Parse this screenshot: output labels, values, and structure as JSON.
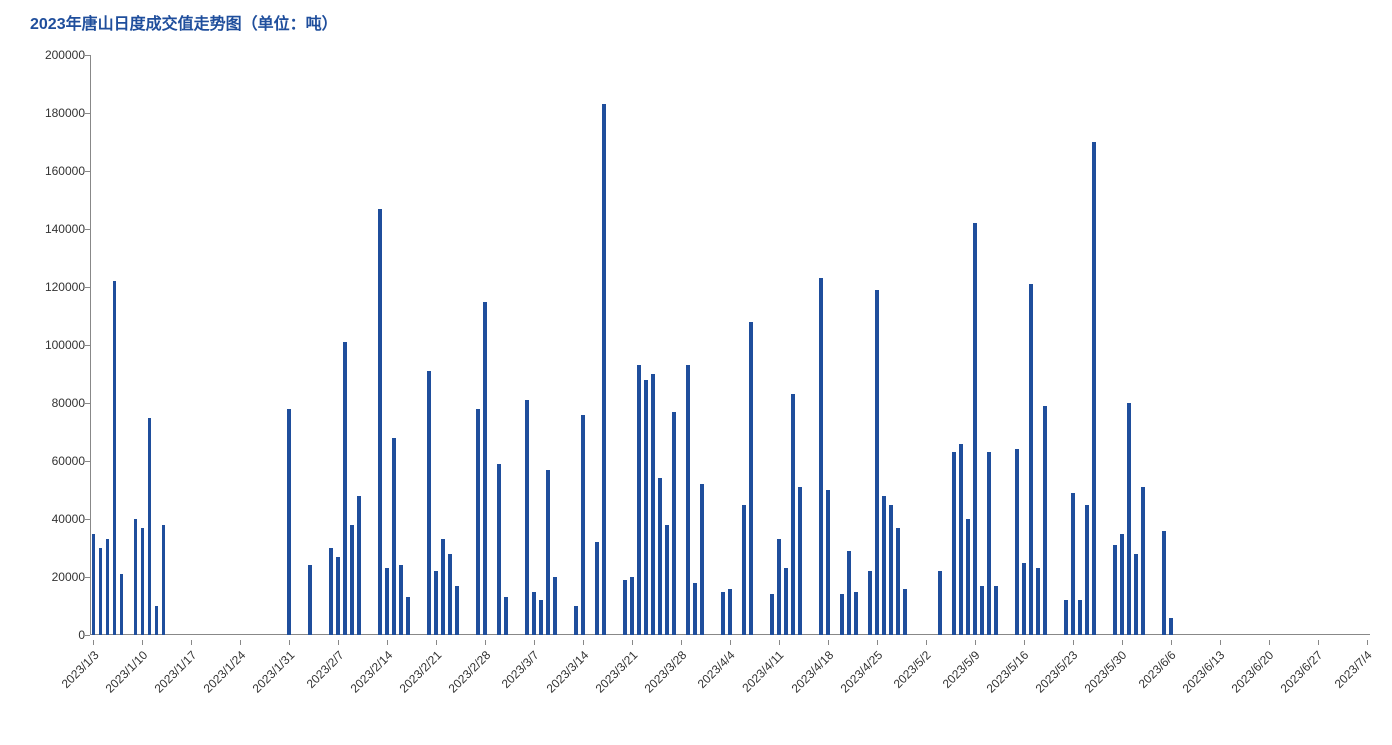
{
  "chart": {
    "type": "bar",
    "title": "2023年唐山日度成交值走势图（单位：吨）",
    "title_color": "#1f4e9c",
    "title_fontsize": 16,
    "bar_color": "#1f4e9c",
    "background_color": "#ffffff",
    "axis_color": "#888888",
    "label_color": "#333333",
    "label_fontsize": 12,
    "ylim": [
      0,
      200000
    ],
    "ytick_step": 20000,
    "y_ticks": [
      0,
      20000,
      40000,
      60000,
      80000,
      100000,
      120000,
      140000,
      160000,
      180000,
      200000
    ],
    "x_tick_labels": [
      "2023/1/3",
      "2023/1/10",
      "2023/1/17",
      "2023/1/24",
      "2023/1/31",
      "2023/2/7",
      "2023/2/14",
      "2023/2/21",
      "2023/2/28",
      "2023/3/7",
      "2023/3/14",
      "2023/3/21",
      "2023/3/28",
      "2023/4/4",
      "2023/4/11",
      "2023/4/18",
      "2023/4/25",
      "2023/5/2",
      "2023/5/9",
      "2023/5/16",
      "2023/5/23",
      "2023/5/30",
      "2023/6/6",
      "2023/6/13",
      "2023/6/20",
      "2023/6/27",
      "2023/7/4"
    ],
    "x_tick_interval": 7,
    "bar_width_ratio": 0.55,
    "data": [
      {
        "date": "2023/1/3",
        "value": 35000
      },
      {
        "date": "2023/1/4",
        "value": 30000
      },
      {
        "date": "2023/1/5",
        "value": 33000
      },
      {
        "date": "2023/1/6",
        "value": 122000
      },
      {
        "date": "2023/1/7",
        "value": 21000
      },
      {
        "date": "2023/1/8",
        "value": 0
      },
      {
        "date": "2023/1/9",
        "value": 40000
      },
      {
        "date": "2023/1/10",
        "value": 37000
      },
      {
        "date": "2023/1/11",
        "value": 75000
      },
      {
        "date": "2023/1/12",
        "value": 10000
      },
      {
        "date": "2023/1/13",
        "value": 38000
      },
      {
        "date": "2023/1/14",
        "value": 0
      },
      {
        "date": "2023/1/15",
        "value": 0
      },
      {
        "date": "2023/1/16",
        "value": 0
      },
      {
        "date": "2023/1/17",
        "value": 0
      },
      {
        "date": "2023/1/18",
        "value": 0
      },
      {
        "date": "2023/1/19",
        "value": 0
      },
      {
        "date": "2023/1/20",
        "value": 0
      },
      {
        "date": "2023/1/21",
        "value": 0
      },
      {
        "date": "2023/1/22",
        "value": 0
      },
      {
        "date": "2023/1/23",
        "value": 0
      },
      {
        "date": "2023/1/24",
        "value": 0
      },
      {
        "date": "2023/1/25",
        "value": 0
      },
      {
        "date": "2023/1/26",
        "value": 0
      },
      {
        "date": "2023/1/27",
        "value": 0
      },
      {
        "date": "2023/1/28",
        "value": 0
      },
      {
        "date": "2023/1/29",
        "value": 0
      },
      {
        "date": "2023/1/30",
        "value": 0
      },
      {
        "date": "2023/1/31",
        "value": 78000
      },
      {
        "date": "2023/2/1",
        "value": 0
      },
      {
        "date": "2023/2/2",
        "value": 0
      },
      {
        "date": "2023/2/3",
        "value": 24000
      },
      {
        "date": "2023/2/4",
        "value": 0
      },
      {
        "date": "2023/2/5",
        "value": 0
      },
      {
        "date": "2023/2/6",
        "value": 30000
      },
      {
        "date": "2023/2/7",
        "value": 27000
      },
      {
        "date": "2023/2/8",
        "value": 101000
      },
      {
        "date": "2023/2/9",
        "value": 38000
      },
      {
        "date": "2023/2/10",
        "value": 48000
      },
      {
        "date": "2023/2/11",
        "value": 0
      },
      {
        "date": "2023/2/12",
        "value": 0
      },
      {
        "date": "2023/2/13",
        "value": 147000
      },
      {
        "date": "2023/2/14",
        "value": 23000
      },
      {
        "date": "2023/2/15",
        "value": 68000
      },
      {
        "date": "2023/2/16",
        "value": 24000
      },
      {
        "date": "2023/2/17",
        "value": 13000
      },
      {
        "date": "2023/2/18",
        "value": 0
      },
      {
        "date": "2023/2/19",
        "value": 0
      },
      {
        "date": "2023/2/20",
        "value": 91000
      },
      {
        "date": "2023/2/21",
        "value": 22000
      },
      {
        "date": "2023/2/22",
        "value": 33000
      },
      {
        "date": "2023/2/23",
        "value": 28000
      },
      {
        "date": "2023/2/24",
        "value": 17000
      },
      {
        "date": "2023/2/25",
        "value": 0
      },
      {
        "date": "2023/2/26",
        "value": 0
      },
      {
        "date": "2023/2/27",
        "value": 78000
      },
      {
        "date": "2023/2/28",
        "value": 115000
      },
      {
        "date": "2023/3/1",
        "value": 0
      },
      {
        "date": "2023/3/2",
        "value": 59000
      },
      {
        "date": "2023/3/3",
        "value": 13000
      },
      {
        "date": "2023/3/4",
        "value": 0
      },
      {
        "date": "2023/3/5",
        "value": 0
      },
      {
        "date": "2023/3/6",
        "value": 81000
      },
      {
        "date": "2023/3/7",
        "value": 15000
      },
      {
        "date": "2023/3/8",
        "value": 12000
      },
      {
        "date": "2023/3/9",
        "value": 57000
      },
      {
        "date": "2023/3/10",
        "value": 20000
      },
      {
        "date": "2023/3/11",
        "value": 0
      },
      {
        "date": "2023/3/12",
        "value": 0
      },
      {
        "date": "2023/3/13",
        "value": 10000
      },
      {
        "date": "2023/3/14",
        "value": 76000
      },
      {
        "date": "2023/3/15",
        "value": 0
      },
      {
        "date": "2023/3/16",
        "value": 32000
      },
      {
        "date": "2023/3/17",
        "value": 183000
      },
      {
        "date": "2023/3/18",
        "value": 0
      },
      {
        "date": "2023/3/19",
        "value": 0
      },
      {
        "date": "2023/3/20",
        "value": 19000
      },
      {
        "date": "2023/3/21",
        "value": 20000
      },
      {
        "date": "2023/3/22",
        "value": 93000
      },
      {
        "date": "2023/3/23",
        "value": 88000
      },
      {
        "date": "2023/3/24",
        "value": 90000
      },
      {
        "date": "2023/3/25",
        "value": 54000
      },
      {
        "date": "2023/3/26",
        "value": 38000
      },
      {
        "date": "2023/3/27",
        "value": 77000
      },
      {
        "date": "2023/3/28",
        "value": 0
      },
      {
        "date": "2023/3/29",
        "value": 93000
      },
      {
        "date": "2023/3/30",
        "value": 18000
      },
      {
        "date": "2023/3/31",
        "value": 52000
      },
      {
        "date": "2023/4/1",
        "value": 0
      },
      {
        "date": "2023/4/2",
        "value": 0
      },
      {
        "date": "2023/4/3",
        "value": 15000
      },
      {
        "date": "2023/4/4",
        "value": 16000
      },
      {
        "date": "2023/4/5",
        "value": 0
      },
      {
        "date": "2023/4/6",
        "value": 45000
      },
      {
        "date": "2023/4/7",
        "value": 108000
      },
      {
        "date": "2023/4/8",
        "value": 0
      },
      {
        "date": "2023/4/9",
        "value": 0
      },
      {
        "date": "2023/4/10",
        "value": 14000
      },
      {
        "date": "2023/4/11",
        "value": 33000
      },
      {
        "date": "2023/4/12",
        "value": 23000
      },
      {
        "date": "2023/4/13",
        "value": 83000
      },
      {
        "date": "2023/4/14",
        "value": 51000
      },
      {
        "date": "2023/4/15",
        "value": 0
      },
      {
        "date": "2023/4/16",
        "value": 0
      },
      {
        "date": "2023/4/17",
        "value": 123000
      },
      {
        "date": "2023/4/18",
        "value": 50000
      },
      {
        "date": "2023/4/19",
        "value": 0
      },
      {
        "date": "2023/4/20",
        "value": 14000
      },
      {
        "date": "2023/4/21",
        "value": 29000
      },
      {
        "date": "2023/4/22",
        "value": 15000
      },
      {
        "date": "2023/4/23",
        "value": 0
      },
      {
        "date": "2023/4/24",
        "value": 22000
      },
      {
        "date": "2023/4/25",
        "value": 119000
      },
      {
        "date": "2023/4/26",
        "value": 48000
      },
      {
        "date": "2023/4/27",
        "value": 45000
      },
      {
        "date": "2023/4/28",
        "value": 37000
      },
      {
        "date": "2023/4/29",
        "value": 16000
      },
      {
        "date": "2023/4/30",
        "value": 0
      },
      {
        "date": "2023/5/1",
        "value": 0
      },
      {
        "date": "2023/5/2",
        "value": 0
      },
      {
        "date": "2023/5/3",
        "value": 0
      },
      {
        "date": "2023/5/4",
        "value": 22000
      },
      {
        "date": "2023/5/5",
        "value": 0
      },
      {
        "date": "2023/5/6",
        "value": 63000
      },
      {
        "date": "2023/5/7",
        "value": 66000
      },
      {
        "date": "2023/5/8",
        "value": 40000
      },
      {
        "date": "2023/5/9",
        "value": 142000
      },
      {
        "date": "2023/5/10",
        "value": 17000
      },
      {
        "date": "2023/5/11",
        "value": 63000
      },
      {
        "date": "2023/5/12",
        "value": 17000
      },
      {
        "date": "2023/5/13",
        "value": 0
      },
      {
        "date": "2023/5/14",
        "value": 0
      },
      {
        "date": "2023/5/15",
        "value": 64000
      },
      {
        "date": "2023/5/16",
        "value": 25000
      },
      {
        "date": "2023/5/17",
        "value": 121000
      },
      {
        "date": "2023/5/18",
        "value": 23000
      },
      {
        "date": "2023/5/19",
        "value": 79000
      },
      {
        "date": "2023/5/20",
        "value": 0
      },
      {
        "date": "2023/5/21",
        "value": 0
      },
      {
        "date": "2023/5/22",
        "value": 12000
      },
      {
        "date": "2023/5/23",
        "value": 49000
      },
      {
        "date": "2023/5/24",
        "value": 12000
      },
      {
        "date": "2023/5/25",
        "value": 45000
      },
      {
        "date": "2023/5/26",
        "value": 170000
      },
      {
        "date": "2023/5/27",
        "value": 0
      },
      {
        "date": "2023/5/28",
        "value": 0
      },
      {
        "date": "2023/5/29",
        "value": 31000
      },
      {
        "date": "2023/5/30",
        "value": 35000
      },
      {
        "date": "2023/5/31",
        "value": 80000
      },
      {
        "date": "2023/6/1",
        "value": 28000
      },
      {
        "date": "2023/6/2",
        "value": 51000
      },
      {
        "date": "2023/6/3",
        "value": 0
      },
      {
        "date": "2023/6/4",
        "value": 0
      },
      {
        "date": "2023/6/5",
        "value": 36000
      },
      {
        "date": "2023/6/6",
        "value": 6000
      },
      {
        "date": "2023/6/7",
        "value": 0
      },
      {
        "date": "2023/6/8",
        "value": 0
      },
      {
        "date": "2023/6/9",
        "value": 0
      },
      {
        "date": "2023/6/10",
        "value": 0
      },
      {
        "date": "2023/6/11",
        "value": 0
      },
      {
        "date": "2023/6/12",
        "value": 0
      },
      {
        "date": "2023/6/13",
        "value": 0
      },
      {
        "date": "2023/6/14",
        "value": 0
      },
      {
        "date": "2023/6/15",
        "value": 0
      },
      {
        "date": "2023/6/16",
        "value": 0
      },
      {
        "date": "2023/6/17",
        "value": 0
      },
      {
        "date": "2023/6/18",
        "value": 0
      },
      {
        "date": "2023/6/19",
        "value": 0
      },
      {
        "date": "2023/6/20",
        "value": 0
      },
      {
        "date": "2023/6/21",
        "value": 0
      },
      {
        "date": "2023/6/22",
        "value": 0
      },
      {
        "date": "2023/6/23",
        "value": 0
      },
      {
        "date": "2023/6/24",
        "value": 0
      },
      {
        "date": "2023/6/25",
        "value": 0
      },
      {
        "date": "2023/6/26",
        "value": 0
      },
      {
        "date": "2023/6/27",
        "value": 0
      },
      {
        "date": "2023/6/28",
        "value": 0
      },
      {
        "date": "2023/6/29",
        "value": 0
      },
      {
        "date": "2023/6/30",
        "value": 0
      },
      {
        "date": "2023/7/1",
        "value": 0
      },
      {
        "date": "2023/7/2",
        "value": 0
      },
      {
        "date": "2023/7/3",
        "value": 0
      },
      {
        "date": "2023/7/4",
        "value": 0
      }
    ]
  }
}
